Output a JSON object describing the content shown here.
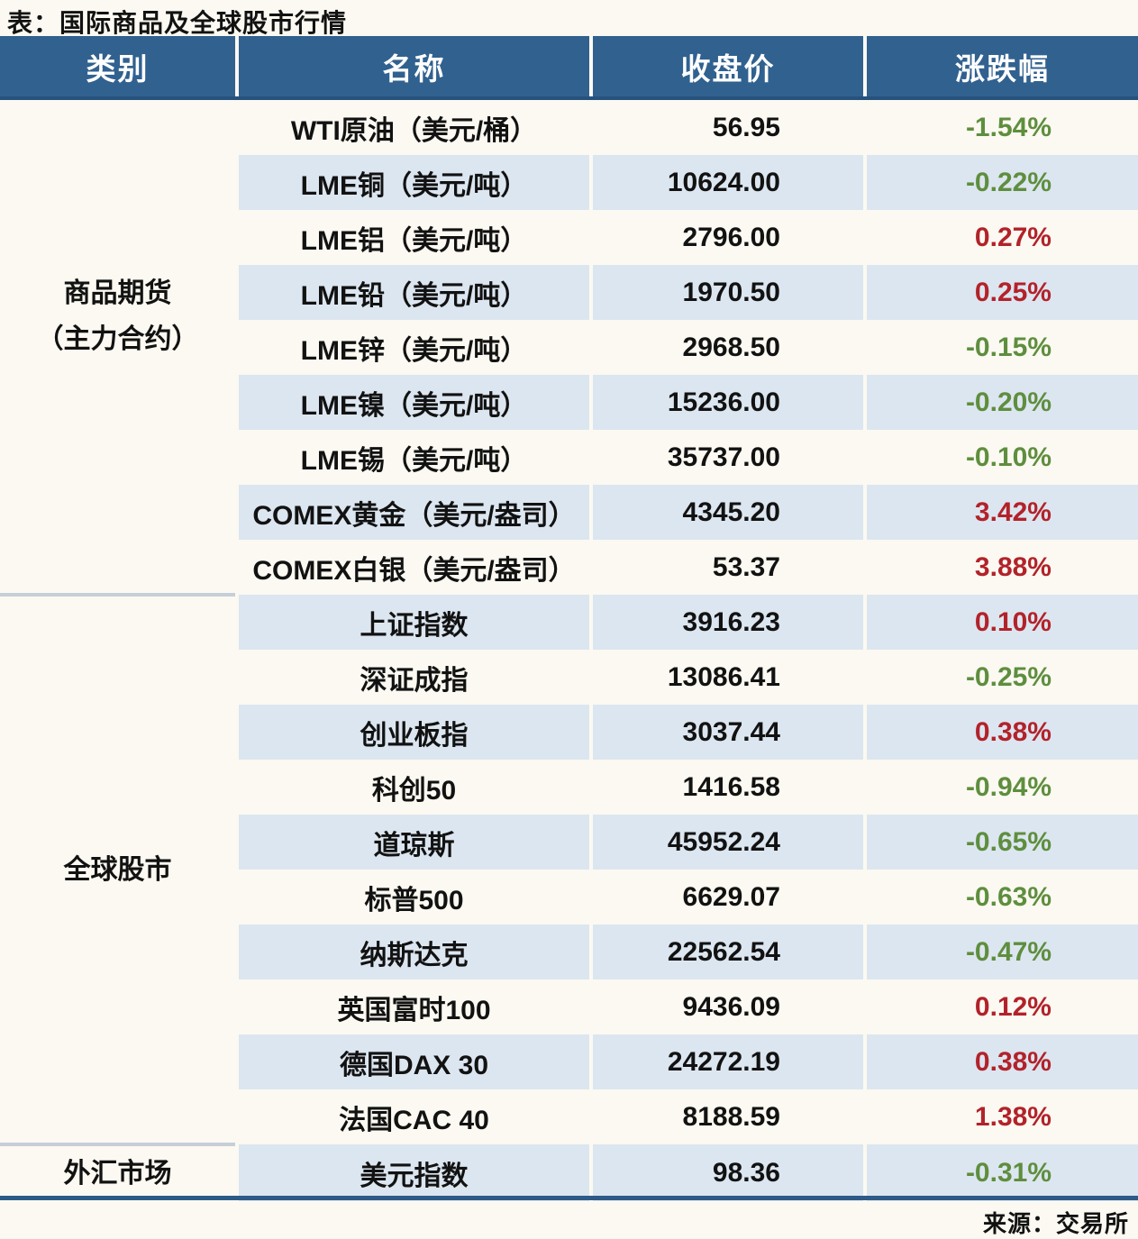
{
  "page": {
    "title": "表：国际商品及全球股市行情",
    "source": "来源：交易所"
  },
  "colors": {
    "page_bg": "#fbf9f1",
    "header_bg": "#31618f",
    "header_text": "#ffffff",
    "alt_row_bg": "#dce6f0",
    "positive_red": "#b2222a",
    "negative_green": "#5e8e3e",
    "group_divider": "#c5cfd9",
    "bottom_border": "#2d5a86"
  },
  "chart_data": {
    "type": "table",
    "title": "表：国际商品及全球股市行情",
    "columns": [
      "类别",
      "名称",
      "收盘价",
      "涨跌幅"
    ],
    "groups": [
      {
        "category_lines": [
          "商品期货",
          "（主力合约）"
        ],
        "rows": [
          {
            "name": "WTI原油（美元/桶）",
            "close": "56.95",
            "change": "-1.54%",
            "direction": "down"
          },
          {
            "name": "LME铜（美元/吨）",
            "close": "10624.00",
            "change": "-0.22%",
            "direction": "down"
          },
          {
            "name": "LME铝（美元/吨）",
            "close": "2796.00",
            "change": "0.27%",
            "direction": "up"
          },
          {
            "name": "LME铅（美元/吨）",
            "close": "1970.50",
            "change": "0.25%",
            "direction": "up"
          },
          {
            "name": "LME锌（美元/吨）",
            "close": "2968.50",
            "change": "-0.15%",
            "direction": "down"
          },
          {
            "name": "LME镍（美元/吨）",
            "close": "15236.00",
            "change": "-0.20%",
            "direction": "down"
          },
          {
            "name": "LME锡（美元/吨）",
            "close": "35737.00",
            "change": "-0.10%",
            "direction": "down"
          },
          {
            "name": "COMEX黄金（美元/盎司）",
            "close": "4345.20",
            "change": "3.42%",
            "direction": "up"
          },
          {
            "name": "COMEX白银（美元/盎司）",
            "close": "53.37",
            "change": "3.88%",
            "direction": "up"
          }
        ]
      },
      {
        "category_lines": [
          "全球股市"
        ],
        "rows": [
          {
            "name": "上证指数",
            "close": "3916.23",
            "change": "0.10%",
            "direction": "up"
          },
          {
            "name": "深证成指",
            "close": "13086.41",
            "change": "-0.25%",
            "direction": "down"
          },
          {
            "name": "创业板指",
            "close": "3037.44",
            "change": "0.38%",
            "direction": "up"
          },
          {
            "name": "科创50",
            "close": "1416.58",
            "change": "-0.94%",
            "direction": "down"
          },
          {
            "name": "道琼斯",
            "close": "45952.24",
            "change": "-0.65%",
            "direction": "down"
          },
          {
            "name": "标普500",
            "close": "6629.07",
            "change": "-0.63%",
            "direction": "down"
          },
          {
            "name": "纳斯达克",
            "close": "22562.54",
            "change": "-0.47%",
            "direction": "down"
          },
          {
            "name": "英国富时100",
            "close": "9436.09",
            "change": "0.12%",
            "direction": "up"
          },
          {
            "name": "德国DAX 30",
            "close": "24272.19",
            "change": "0.38%",
            "direction": "up"
          },
          {
            "name": "法国CAC 40",
            "close": "8188.59",
            "change": "1.38%",
            "direction": "up"
          }
        ]
      },
      {
        "category_lines": [
          "外汇市场"
        ],
        "rows": [
          {
            "name": "美元指数",
            "close": "98.36",
            "change": "-0.31%",
            "direction": "down"
          }
        ]
      }
    ]
  }
}
